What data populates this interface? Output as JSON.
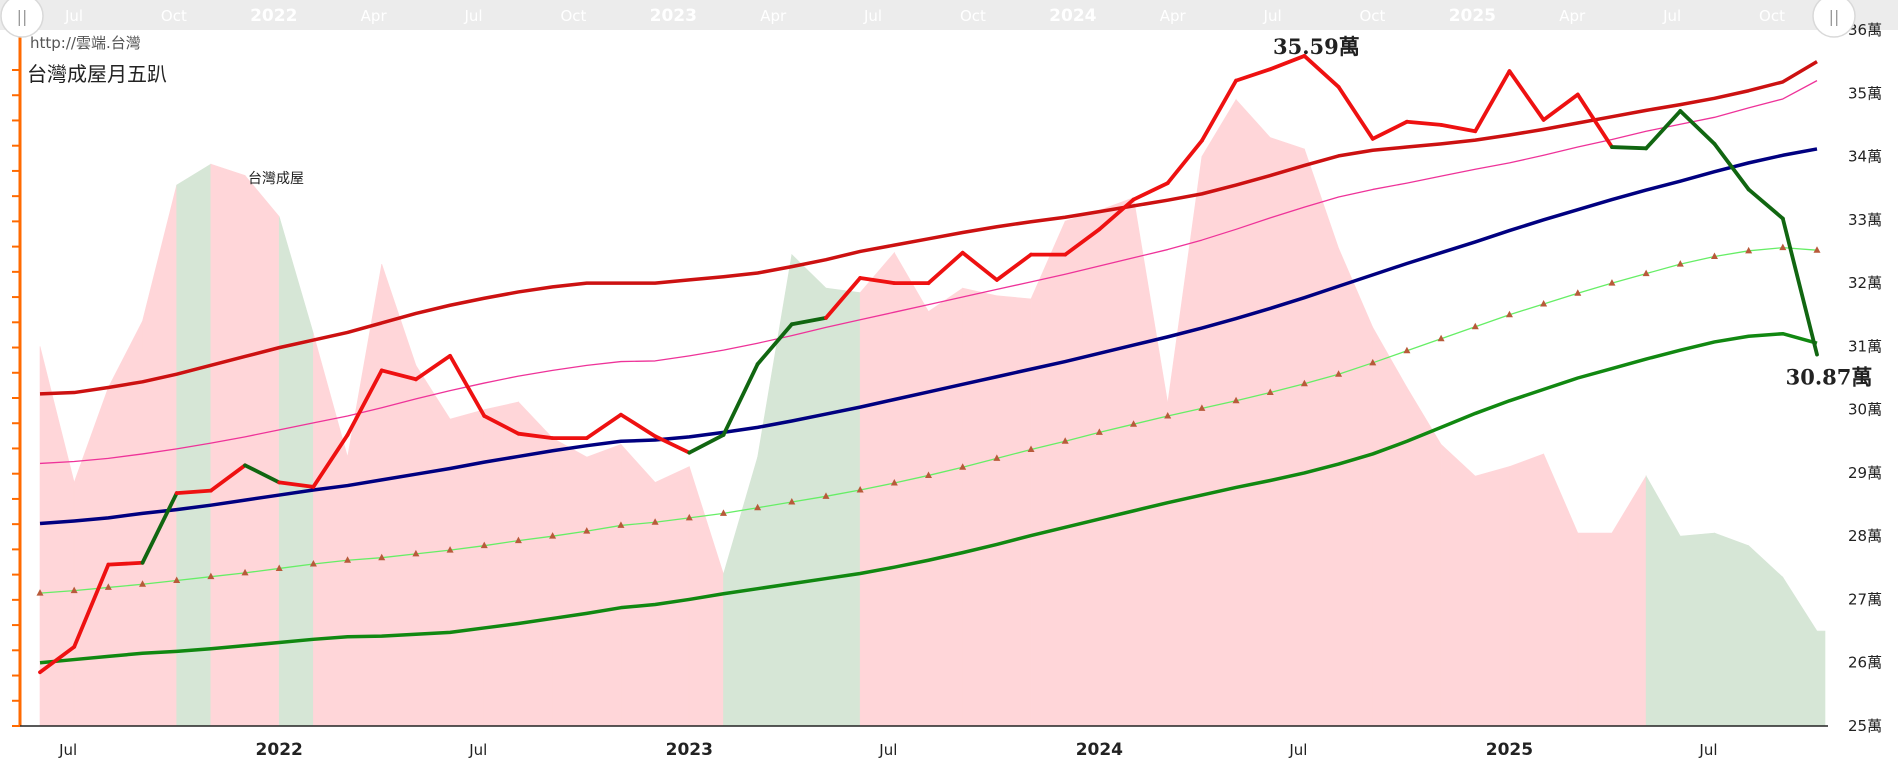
{
  "source_url": "http://雲端.台灣",
  "chart_title": "台灣成屋月五趴",
  "series_label": "台灣成屋",
  "navigator": {
    "labels": [
      "Jul",
      "Oct",
      "2022",
      "Apr",
      "Jul",
      "Oct",
      "2023",
      "Apr",
      "Jul",
      "Oct",
      "2024",
      "Apr",
      "Jul",
      "Oct",
      "2025",
      "Apr",
      "Jul",
      "Oct"
    ],
    "handle_glyph": "||"
  },
  "chart_data": {
    "type": "line",
    "x_start": "2021-06",
    "x_end": "2025-10",
    "x": [
      "2021-06",
      "2021-07",
      "2021-08",
      "2021-09",
      "2021-10",
      "2021-11",
      "2021-12",
      "2022-01",
      "2022-02",
      "2022-03",
      "2022-04",
      "2022-05",
      "2022-06",
      "2022-07",
      "2022-08",
      "2022-09",
      "2022-10",
      "2022-11",
      "2022-12",
      "2023-01",
      "2023-02",
      "2023-03",
      "2023-04",
      "2023-05",
      "2023-06",
      "2023-07",
      "2023-08",
      "2023-09",
      "2023-10",
      "2023-11",
      "2023-12",
      "2024-01",
      "2024-02",
      "2024-03",
      "2024-04",
      "2024-05",
      "2024-06",
      "2024-07",
      "2024-08",
      "2024-09",
      "2024-10",
      "2024-11",
      "2024-12",
      "2025-01",
      "2025-02",
      "2025-03",
      "2025-04",
      "2025-05",
      "2025-06",
      "2025-07",
      "2025-08",
      "2025-09",
      "2025-10"
    ],
    "ylim": [
      25,
      36
    ],
    "y_ticks": [
      25,
      26,
      27,
      28,
      29,
      30,
      31,
      32,
      33,
      34,
      35,
      36
    ],
    "y_tick_suffix": "萬",
    "x_tick_labels": [
      {
        "x": "2021-07",
        "label": "Jul",
        "year": false
      },
      {
        "x": "2022-01",
        "label": "2022",
        "year": true
      },
      {
        "x": "2022-07",
        "label": "Jul",
        "year": false
      },
      {
        "x": "2023-01",
        "label": "2023",
        "year": true
      },
      {
        "x": "2023-07",
        "label": "Jul",
        "year": false
      },
      {
        "x": "2024-01",
        "label": "2024",
        "year": true
      },
      {
        "x": "2024-07",
        "label": "Jul",
        "year": false
      },
      {
        "x": "2025-01",
        "label": "2025",
        "year": true
      },
      {
        "x": "2025-07",
        "label": "Jul",
        "year": false
      }
    ],
    "price": [
      25.85,
      26.25,
      27.55,
      27.58,
      28.68,
      28.72,
      29.12,
      28.85,
      28.78,
      29.6,
      30.62,
      30.48,
      30.85,
      29.9,
      29.62,
      29.55,
      29.55,
      29.92,
      29.58,
      29.32,
      29.6,
      30.72,
      31.35,
      31.45,
      32.08,
      32.0,
      32.0,
      32.48,
      32.05,
      32.45,
      32.45,
      32.85,
      33.32,
      33.58,
      34.25,
      35.2,
      35.38,
      35.59,
      35.1,
      34.28,
      34.55,
      34.5,
      34.4,
      35.35,
      34.58,
      34.98,
      34.15,
      34.13,
      34.72,
      34.2,
      33.48,
      33.02,
      30.87
    ],
    "price_down_months": [
      "2021-10",
      "2022-01",
      "2023-02",
      "2023-03",
      "2023-04",
      "2023-05",
      "2025-05",
      "2025-06",
      "2025-07",
      "2025-08",
      "2025-09",
      "2025-10"
    ],
    "upper_band": [
      30.25,
      30.27,
      30.35,
      30.44,
      30.56,
      30.7,
      30.84,
      30.98,
      31.1,
      31.22,
      31.37,
      31.52,
      31.65,
      31.76,
      31.86,
      31.94,
      32.0,
      32.0,
      32.0,
      32.05,
      32.1,
      32.16,
      32.26,
      32.37,
      32.5,
      32.6,
      32.7,
      32.8,
      32.89,
      32.97,
      33.04,
      33.13,
      33.22,
      33.31,
      33.41,
      33.55,
      33.7,
      33.86,
      34.01,
      34.1,
      34.15,
      34.2,
      34.26,
      34.34,
      34.43,
      34.53,
      34.63,
      34.73,
      34.82,
      34.92,
      35.04,
      35.18,
      35.5
    ],
    "mid_upper": [
      29.15,
      29.18,
      29.23,
      29.3,
      29.38,
      29.47,
      29.57,
      29.68,
      29.79,
      29.9,
      30.03,
      30.17,
      30.3,
      30.42,
      30.53,
      30.62,
      30.7,
      30.76,
      30.77,
      30.85,
      30.94,
      31.05,
      31.17,
      31.3,
      31.42,
      31.54,
      31.66,
      31.78,
      31.9,
      32.02,
      32.14,
      32.27,
      32.4,
      32.53,
      32.68,
      32.85,
      33.03,
      33.2,
      33.36,
      33.48,
      33.58,
      33.69,
      33.8,
      33.9,
      34.02,
      34.15,
      34.27,
      34.4,
      34.51,
      34.62,
      34.77,
      34.91,
      35.2
    ],
    "middle": [
      28.2,
      28.24,
      28.29,
      28.36,
      28.42,
      28.49,
      28.57,
      28.65,
      28.73,
      28.8,
      28.89,
      28.98,
      29.07,
      29.17,
      29.26,
      29.35,
      29.43,
      29.5,
      29.52,
      29.57,
      29.64,
      29.72,
      29.82,
      29.93,
      30.04,
      30.16,
      30.28,
      30.4,
      30.52,
      30.64,
      30.76,
      30.89,
      31.02,
      31.15,
      31.29,
      31.44,
      31.6,
      31.77,
      31.95,
      32.13,
      32.31,
      32.48,
      32.65,
      32.83,
      33.0,
      33.16,
      33.32,
      33.47,
      33.61,
      33.76,
      33.9,
      34.02,
      34.12
    ],
    "mid_lower": [
      27.1,
      27.14,
      27.19,
      27.24,
      27.3,
      27.36,
      27.42,
      27.49,
      27.56,
      27.62,
      27.66,
      27.72,
      27.78,
      27.85,
      27.93,
      28.0,
      28.08,
      28.17,
      28.22,
      28.29,
      28.36,
      28.45,
      28.54,
      28.63,
      28.73,
      28.84,
      28.96,
      29.09,
      29.23,
      29.37,
      29.5,
      29.64,
      29.77,
      29.9,
      30.02,
      30.14,
      30.27,
      30.41,
      30.56,
      30.74,
      30.93,
      31.12,
      31.31,
      31.5,
      31.67,
      31.84,
      32.0,
      32.15,
      32.3,
      32.42,
      32.51,
      32.56,
      32.52
    ],
    "lower_band": [
      26.0,
      26.05,
      26.1,
      26.15,
      26.18,
      26.22,
      26.27,
      26.32,
      26.37,
      26.41,
      26.42,
      26.45,
      26.48,
      26.55,
      26.62,
      26.7,
      26.78,
      26.87,
      26.92,
      27.0,
      27.09,
      27.17,
      27.25,
      27.33,
      27.41,
      27.51,
      27.62,
      27.74,
      27.87,
      28.01,
      28.14,
      28.27,
      28.4,
      28.53,
      28.65,
      28.77,
      28.88,
      29.0,
      29.14,
      29.3,
      29.5,
      29.72,
      29.94,
      30.14,
      30.32,
      30.5,
      30.65,
      30.8,
      30.94,
      31.07,
      31.16,
      31.2,
      31.05
    ],
    "area": [
      31.0,
      28.85,
      30.35,
      31.4,
      33.55,
      33.88,
      33.7,
      33.05,
      31.2,
      29.25,
      32.3,
      30.7,
      29.85,
      30.0,
      30.12,
      29.55,
      29.25,
      29.45,
      28.85,
      29.1,
      27.4,
      29.25,
      32.45,
      31.92,
      31.85,
      32.48,
      31.55,
      31.92,
      31.8,
      31.75,
      32.98,
      33.15,
      33.35,
      30.1,
      34.0,
      34.9,
      34.3,
      34.12,
      32.55,
      31.3,
      30.35,
      29.45,
      28.95,
      29.1,
      29.3,
      28.05,
      28.05,
      28.95,
      28.0,
      28.05,
      27.85,
      27.35,
      26.5
    ],
    "area_red_color": "#ffd6d9",
    "area_green_color": "#d6e6d6",
    "colors": {
      "price_up": "#ee1111",
      "price_down": "#116611",
      "upper_band": "#cc1111",
      "mid_upper": "#ee3399",
      "middle": "#000080",
      "mid_lower": "#66ee66",
      "mid_lower_marker": "#b85a3a",
      "lower_band": "#118811",
      "left_axis": "#ff6a00"
    },
    "annotations": [
      {
        "x": "2024-07",
        "y": 35.59,
        "text": "35.59萬",
        "position": "above"
      },
      {
        "x": "2025-10",
        "y": 30.87,
        "text": "30.87萬",
        "position": "below"
      }
    ],
    "legend": "none",
    "grid": false
  }
}
